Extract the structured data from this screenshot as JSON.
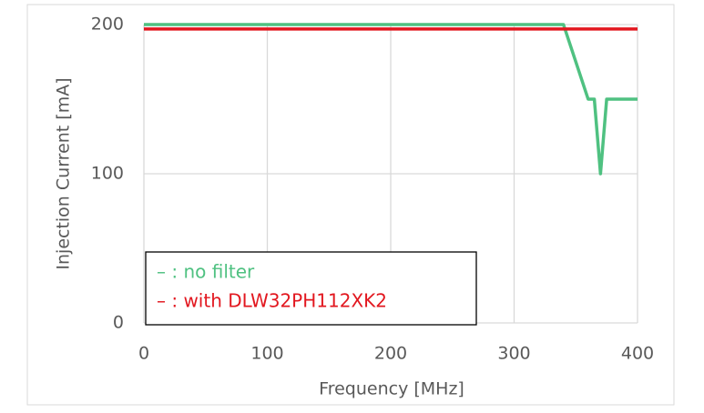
{
  "chart_data": {
    "type": "line",
    "x_label": "Frequency [MHz]",
    "y_label": "Injection Current [mA]",
    "xlim": [
      0,
      400
    ],
    "xticks": [
      0,
      100,
      200,
      300,
      400
    ],
    "ylim": [
      0,
      200
    ],
    "yticks": [
      0,
      100,
      200
    ],
    "grid": true,
    "legend": "lower left",
    "series": [
      {
        "name": "– : no filter",
        "color": "#4fc181",
        "x": [
          0,
          340,
          360,
          365,
          370,
          375,
          400
        ],
        "values": [
          200,
          200,
          150,
          150,
          100,
          150,
          150
        ]
      },
      {
        "name": "– : with DLW32PH112XK2",
        "color": "#e2171f",
        "x": [
          0,
          400
        ],
        "values": [
          197,
          197
        ]
      }
    ]
  }
}
